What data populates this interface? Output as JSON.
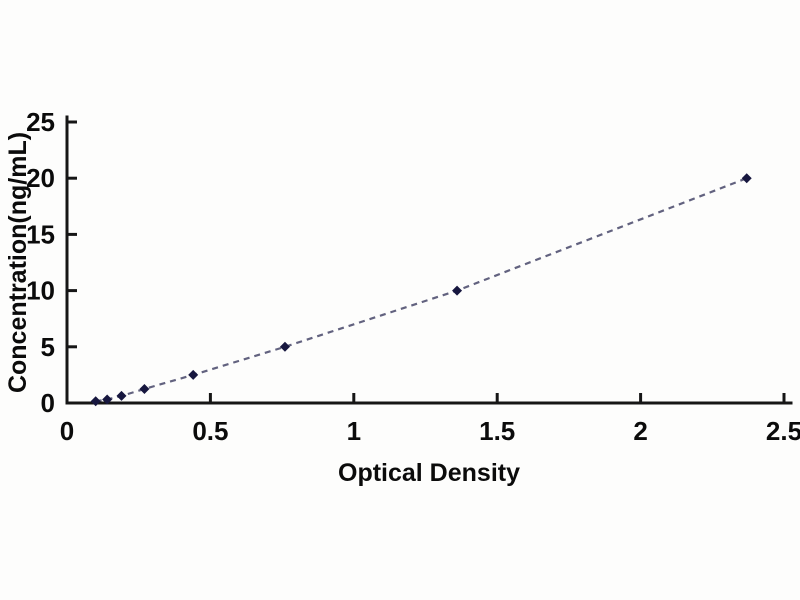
{
  "chart_data": {
    "type": "line",
    "title": "",
    "xlabel": "Optical Density",
    "ylabel": "Concentration(ng/mL)",
    "series": [
      {
        "name": "standard-curve",
        "x": [
          0.1,
          0.14,
          0.19,
          0.27,
          0.44,
          0.76,
          1.36,
          2.37
        ],
        "y": [
          0.16,
          0.31,
          0.63,
          1.25,
          2.5,
          5,
          10,
          20
        ]
      }
    ],
    "xlim": [
      0,
      2.5
    ],
    "ylim": [
      0,
      25
    ],
    "x_ticks": [
      0,
      0.5,
      1,
      1.5,
      2,
      2.5
    ],
    "x_tick_labels": [
      "0",
      "0.5",
      "1",
      "1.5",
      "2",
      "2.5"
    ],
    "y_ticks": [
      0,
      5,
      10,
      15,
      20,
      25
    ],
    "y_tick_labels": [
      "0",
      "5",
      "10",
      "15",
      "20",
      "25"
    ],
    "grid": false,
    "legend": "none",
    "line_style": "dashed",
    "marker": "diamond",
    "colors": {
      "line": "#62627f",
      "marker": "#17173f",
      "axis": "#161616",
      "text": "#0b0b0b",
      "background": "#fdfdfc"
    }
  }
}
